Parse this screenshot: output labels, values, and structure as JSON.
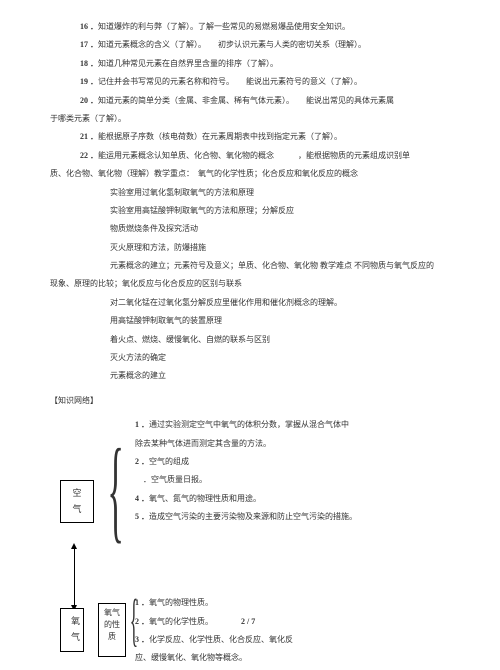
{
  "items": [
    {
      "cls": "line indent1",
      "t": "16 ．知道爆炸的利与弊（了解）。了解一些常见的易燃易爆品使用安全知识。"
    },
    {
      "cls": "line indent1",
      "t": "17 ．知道元素概念的含义（了解）。　　初步认识元素与人类的密切关系（理解）。"
    },
    {
      "cls": "line indent1",
      "t": "18 ．知道几种常见元素在自然界里含量的排序（了解）。"
    },
    {
      "cls": "line indent1",
      "t": "19 ．记住并会书写常见的元素名称和符号。　　能说出元素符号的意义（了解）。"
    },
    {
      "cls": "line indent1",
      "t": "20 ．知道元素的简单分类（金属、非金属、稀有气体元素）。　　能说出常见的具体元素属"
    },
    {
      "cls": "line",
      "t": "于哪类元素（了解）。"
    },
    {
      "cls": "line indent1",
      "t": "21 ．能根据原子序数（核电荷数）在元素周期表中找到指定元素（了解）。"
    },
    {
      "cls": "line indent1",
      "t": "22 ．能运用元素概念认知单质、化合物、氧化物的概念　　　，能根据物质的元素组成识别单"
    },
    {
      "cls": "line",
      "t": "质、化合物、氧化物（理解）教学重点：　氧气的化学性质；化合反应和氧化反应的概念"
    },
    {
      "cls": "line indent2",
      "t": "实验室用过氧化氢制取氧气的方法和原理"
    },
    {
      "cls": "line indent2",
      "t": "实验室用高锰酸钾制取氧气的方法和原理；分解反应"
    },
    {
      "cls": "line indent2",
      "t": "物质燃烧条件及探究活动"
    },
    {
      "cls": "line indent2",
      "t": "灭火原理和方法，防爆措施"
    },
    {
      "cls": "line indent2",
      "t": "元素概念的建立；元素符号及意义；单质、化合物、氧化物 教学难点 不同物质与氧气反应的"
    },
    {
      "cls": "line",
      "t": "现象、原理的比较；氧化反应与化合反应的区别与联系"
    },
    {
      "cls": "line indent2",
      "t": "对二氧化锰在过氧化氢分解反应里催化作用和催化剂概念的理解。"
    },
    {
      "cls": "line indent2",
      "t": "用高锰酸钾制取氧气的装置原理"
    },
    {
      "cls": "line indent2",
      "t": "着火点、燃烧、缓慢氧化、自燃的联系与区别"
    },
    {
      "cls": "line indent2",
      "t": "灭火方法的确定"
    },
    {
      "cls": "line indent2",
      "t": "元素概念的建立"
    }
  ],
  "sectionLabel": "【知识网络】",
  "airBox": "空气",
  "oxyBox": "氧\n气",
  "oxyPropBox": "氧气\n的性\n质",
  "airList": [
    "1 ．通过实验测定空气中氧气的体积分数，掌握从混合气体中",
    "除去某种气体进而测定其含量的方法。",
    "2 ．空气的组成",
    "　．空气质量日报。",
    "4 ．氧气、氮气的物理性质和用途。",
    "5 ．造成空气污染的主要污染物及来源和防止空气污染的措施。"
  ],
  "oxyList": [
    "1 ．氧气的物理性质。",
    "2 ．氧气的化学性质。　　　　2  /  7",
    "3 ．化学反应、化学性质、化合反应、氧化反",
    "应、缓慢氧化、氧化物等概念。"
  ],
  "pageRef": "2  /  7"
}
